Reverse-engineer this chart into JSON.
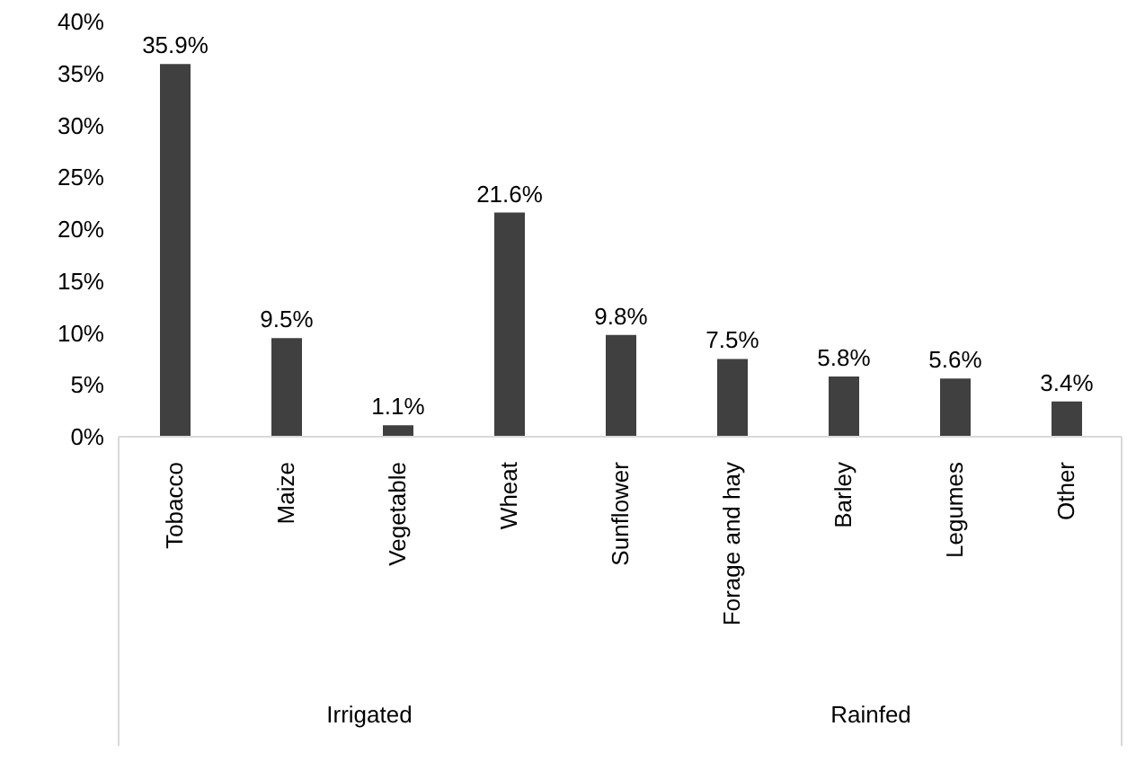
{
  "chart_data": {
    "type": "bar",
    "categories": [
      "Tobacco",
      "Maize",
      "Vegetable",
      "Wheat",
      "Sunflower",
      "Forage and hay",
      "Barley",
      "Legumes",
      "Other"
    ],
    "values": [
      35.9,
      9.5,
      1.1,
      21.6,
      9.8,
      7.5,
      5.8,
      5.6,
      3.4
    ],
    "value_labels": [
      "35.9%",
      "9.5%",
      "1.1%",
      "21.6%",
      "9.8%",
      "7.5%",
      "5.8%",
      "5.6%",
      "3.4%"
    ],
    "color": "#404040",
    "ylim": [
      0,
      40
    ],
    "yticks": [
      {
        "value": 0,
        "label": "0%"
      },
      {
        "value": 5,
        "label": "5%"
      },
      {
        "value": 10,
        "label": "10%"
      },
      {
        "value": 15,
        "label": "15%"
      },
      {
        "value": 20,
        "label": "20%"
      },
      {
        "value": 25,
        "label": "25%"
      },
      {
        "value": 30,
        "label": "30%"
      },
      {
        "value": 35,
        "label": "35%"
      },
      {
        "value": 40,
        "label": "40%"
      }
    ],
    "annotations": [
      "Irrigated",
      "Rainfed"
    ],
    "grid": false,
    "legend": false
  }
}
